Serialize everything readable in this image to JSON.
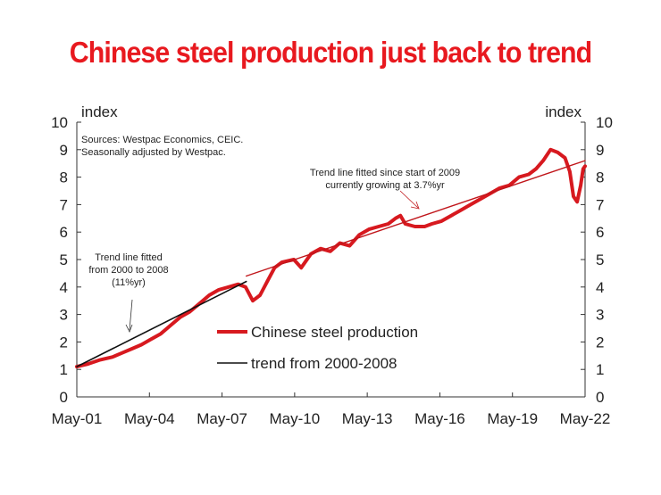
{
  "chart_data": {
    "type": "line",
    "title": "Chinese steel production just back to trend",
    "ylabel_left": "index",
    "ylabel_right": "index",
    "ylim": [
      0,
      10
    ],
    "yticks": [
      0,
      1,
      2,
      3,
      4,
      5,
      6,
      7,
      8,
      9,
      10
    ],
    "xlim": [
      2001.33,
      2022.33
    ],
    "xticks": [
      {
        "label": "May-01",
        "x": 2001.33
      },
      {
        "label": "May-04",
        "x": 2004.33
      },
      {
        "label": "May-07",
        "x": 2007.33
      },
      {
        "label": "May-10",
        "x": 2010.33
      },
      {
        "label": "May-13",
        "x": 2013.33
      },
      {
        "label": "May-16",
        "x": 2016.33
      },
      {
        "label": "May-19",
        "x": 2019.33
      },
      {
        "label": "May-22",
        "x": 2022.33
      }
    ],
    "grid": false,
    "legend_position": "center",
    "source_note": [
      "Sources: Westpac Economics, CEIC.",
      "Seasonally adjusted by Westpac."
    ],
    "annotations": [
      {
        "lines": [
          "Trend line fitted",
          "from 2000 to 2008",
          "(11%yr)"
        ],
        "color": "#222222"
      },
      {
        "lines": [
          "Trend line fitted since start of 2009",
          "currently growing at 3.7%yr"
        ],
        "color": "#c0161b"
      }
    ],
    "series": [
      {
        "name": "Chinese steel production",
        "color": "#d7191f",
        "points": [
          [
            2001.33,
            1.1
          ],
          [
            2001.8,
            1.2
          ],
          [
            2002.3,
            1.35
          ],
          [
            2002.8,
            1.45
          ],
          [
            2003.2,
            1.6
          ],
          [
            2003.6,
            1.75
          ],
          [
            2004.0,
            1.9
          ],
          [
            2004.4,
            2.1
          ],
          [
            2004.8,
            2.3
          ],
          [
            2005.2,
            2.6
          ],
          [
            2005.6,
            2.9
          ],
          [
            2006.0,
            3.1
          ],
          [
            2006.4,
            3.4
          ],
          [
            2006.8,
            3.7
          ],
          [
            2007.2,
            3.9
          ],
          [
            2007.6,
            4.0
          ],
          [
            2008.0,
            4.1
          ],
          [
            2008.3,
            4.0
          ],
          [
            2008.6,
            3.5
          ],
          [
            2008.9,
            3.7
          ],
          [
            2009.2,
            4.2
          ],
          [
            2009.5,
            4.7
          ],
          [
            2009.8,
            4.9
          ],
          [
            2010.3,
            5.0
          ],
          [
            2010.6,
            4.7
          ],
          [
            2011.0,
            5.2
          ],
          [
            2011.4,
            5.4
          ],
          [
            2011.8,
            5.3
          ],
          [
            2012.2,
            5.6
          ],
          [
            2012.6,
            5.5
          ],
          [
            2013.0,
            5.9
          ],
          [
            2013.4,
            6.1
          ],
          [
            2013.8,
            6.2
          ],
          [
            2014.2,
            6.3
          ],
          [
            2014.5,
            6.5
          ],
          [
            2014.7,
            6.6
          ],
          [
            2014.9,
            6.3
          ],
          [
            2015.3,
            6.2
          ],
          [
            2015.7,
            6.2
          ],
          [
            2016.0,
            6.3
          ],
          [
            2016.4,
            6.4
          ],
          [
            2016.8,
            6.6
          ],
          [
            2017.2,
            6.8
          ],
          [
            2017.6,
            7.0
          ],
          [
            2018.0,
            7.2
          ],
          [
            2018.4,
            7.4
          ],
          [
            2018.8,
            7.6
          ],
          [
            2019.2,
            7.7
          ],
          [
            2019.6,
            8.0
          ],
          [
            2020.0,
            8.1
          ],
          [
            2020.3,
            8.3
          ],
          [
            2020.6,
            8.6
          ],
          [
            2020.9,
            9.0
          ],
          [
            2021.2,
            8.9
          ],
          [
            2021.5,
            8.7
          ],
          [
            2021.7,
            8.2
          ],
          [
            2021.85,
            7.3
          ],
          [
            2022.0,
            7.1
          ],
          [
            2022.15,
            7.7
          ],
          [
            2022.25,
            8.3
          ],
          [
            2022.33,
            8.4
          ]
        ]
      },
      {
        "name": "trend from 2000-2008",
        "color": "#111111",
        "points": [
          [
            2001.33,
            1.1
          ],
          [
            2008.33,
            4.2
          ]
        ]
      },
      {
        "name": "trend since 2009",
        "color": "#c0161b",
        "points": [
          [
            2008.33,
            4.4
          ],
          [
            2022.33,
            8.6
          ]
        ]
      }
    ],
    "legend": [
      {
        "label": "Chinese steel production",
        "color": "#d7191f"
      },
      {
        "label": "trend from 2000-2008",
        "color": "#111111"
      }
    ]
  }
}
